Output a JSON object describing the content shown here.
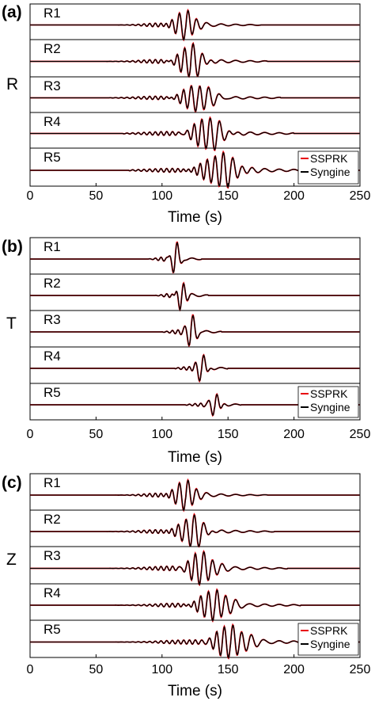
{
  "chart_data": [
    {
      "type": "line",
      "panel_label": "(a)",
      "component": "R",
      "xlabel": "Time (s)",
      "xlim": [
        0,
        250
      ],
      "xticks": [
        "0",
        "50",
        "100",
        "150",
        "200",
        "250"
      ],
      "legend": [
        "SSPRK",
        "Syngine"
      ],
      "legend_position": "bottom-right",
      "series": [
        {
          "name": "SSPRK",
          "color": "#e8000b"
        },
        {
          "name": "Syngine",
          "color": "#000000"
        }
      ],
      "traces": [
        {
          "label": "R1",
          "center": 118,
          "width": 9,
          "amp": 1.0,
          "start": 50,
          "end": 175
        },
        {
          "label": "R2",
          "center": 122,
          "width": 11,
          "amp": 0.95,
          "start": 55,
          "end": 180
        },
        {
          "label": "R3",
          "center": 127,
          "width": 13,
          "amp": 0.9,
          "start": 60,
          "end": 190
        },
        {
          "label": "R4",
          "center": 135,
          "width": 14,
          "amp": 1.0,
          "start": 70,
          "end": 200
        },
        {
          "label": "R5",
          "center": 145,
          "width": 16,
          "amp": 0.95,
          "start": 75,
          "end": 215
        }
      ]
    },
    {
      "type": "line",
      "panel_label": "(b)",
      "component": "T",
      "xlabel": "Time (s)",
      "xlim": [
        0,
        250
      ],
      "xticks": [
        "0",
        "50",
        "100",
        "150",
        "200",
        "250"
      ],
      "legend": [
        "SSPRK",
        "Syngine"
      ],
      "legend_position": "bottom-right",
      "series": [
        {
          "name": "SSPRK",
          "color": "#e8000b"
        },
        {
          "name": "Syngine",
          "color": "#000000"
        }
      ],
      "traces": [
        {
          "label": "R1",
          "center": 110,
          "width": 4,
          "amp": 1.0,
          "start": 90,
          "end": 130
        },
        {
          "label": "R2",
          "center": 115,
          "width": 4,
          "amp": 1.0,
          "start": 95,
          "end": 135
        },
        {
          "label": "R3",
          "center": 122,
          "width": 4.5,
          "amp": 1.0,
          "start": 100,
          "end": 145
        },
        {
          "label": "R4",
          "center": 130,
          "width": 4.5,
          "amp": 0.9,
          "start": 110,
          "end": 150
        },
        {
          "label": "R5",
          "center": 140,
          "width": 5,
          "amp": 0.75,
          "start": 118,
          "end": 160
        }
      ]
    },
    {
      "type": "line",
      "panel_label": "(c)",
      "component": "Z",
      "xlabel": "Time (s)",
      "xlim": [
        0,
        250
      ],
      "xticks": [
        "0",
        "50",
        "100",
        "150",
        "200",
        "250"
      ],
      "legend": [
        "SSPRK",
        "Syngine"
      ],
      "legend_position": "bottom-right",
      "series": [
        {
          "name": "SSPRK",
          "color": "#e8000b"
        },
        {
          "name": "Syngine",
          "color": "#000000"
        }
      ],
      "traces": [
        {
          "label": "R1",
          "center": 118,
          "width": 9,
          "amp": 1.0,
          "start": 45,
          "end": 180
        },
        {
          "label": "R2",
          "center": 123,
          "width": 11,
          "amp": 0.95,
          "start": 50,
          "end": 185
        },
        {
          "label": "R3",
          "center": 130,
          "width": 12,
          "amp": 1.0,
          "start": 55,
          "end": 195
        },
        {
          "label": "R4",
          "center": 140,
          "width": 13,
          "amp": 1.0,
          "start": 60,
          "end": 205
        },
        {
          "label": "R5",
          "center": 152,
          "width": 15,
          "amp": 1.0,
          "start": 65,
          "end": 220
        }
      ]
    }
  ]
}
